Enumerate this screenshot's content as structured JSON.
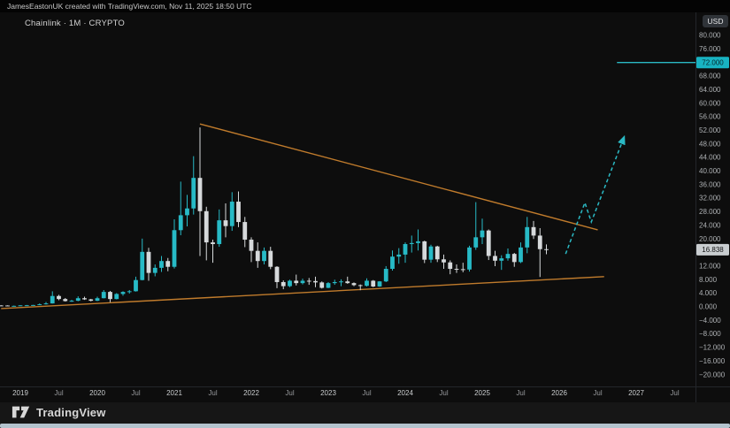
{
  "top_bar": {
    "attribution": "JamesEastonUK created with TradingView.com, Nov 11, 2025 18:50 UTC"
  },
  "chart_header": {
    "symbol_label": "Chainlink · 1M · CRYPTO",
    "currency_button": "USD"
  },
  "footer": {
    "brand": "TradingView",
    "logo_icon": "tradingview-logo"
  },
  "colors": {
    "up_candle": "#27bac6",
    "down_candle": "#d6d9db",
    "trendline": "#c07b2c",
    "projection": "#2ab9c4",
    "price_target_bg": "#18b3c2",
    "last_price_bg": "#c9cdd0",
    "axis_text": "#aeb1b4",
    "year_text": "#c9ccce",
    "month_text": "#97999c",
    "divider": "#23262b",
    "background": "#0d0d0d"
  },
  "price_axis": {
    "ticks": [
      {
        "value": 80,
        "label": "80.000"
      },
      {
        "value": 76,
        "label": "76.000"
      },
      {
        "value": 72,
        "label": "72.000"
      },
      {
        "value": 68,
        "label": "68.000"
      },
      {
        "value": 64,
        "label": "64.000"
      },
      {
        "value": 60,
        "label": "60.000"
      },
      {
        "value": 56,
        "label": "56.000"
      },
      {
        "value": 52,
        "label": "52.000"
      },
      {
        "value": 48,
        "label": "48.000"
      },
      {
        "value": 44,
        "label": "44.000"
      },
      {
        "value": 40,
        "label": "40.000"
      },
      {
        "value": 36,
        "label": "36.000"
      },
      {
        "value": 32,
        "label": "32.000"
      },
      {
        "value": 28,
        "label": "28.000"
      },
      {
        "value": 24,
        "label": "24.000"
      },
      {
        "value": 20,
        "label": "20.000"
      },
      {
        "value": 16,
        "label": "16.000"
      },
      {
        "value": 12,
        "label": "12.000"
      },
      {
        "value": 8,
        "label": "8.000"
      },
      {
        "value": 4,
        "label": "4.000"
      },
      {
        "value": 0,
        "label": "0.000"
      },
      {
        "value": -4,
        "label": "−4.000"
      },
      {
        "value": -8,
        "label": "−8.000"
      },
      {
        "value": -12,
        "label": "−12.000"
      },
      {
        "value": -16,
        "label": "−16.000"
      },
      {
        "value": -20,
        "label": "−20.000"
      }
    ]
  },
  "time_axis": {
    "labels": [
      {
        "text": "2019",
        "month": "2019-01",
        "type": "year"
      },
      {
        "text": "Jul",
        "month": "2019-07",
        "type": "month"
      },
      {
        "text": "2020",
        "month": "2020-01",
        "type": "year"
      },
      {
        "text": "Jul",
        "month": "2020-07",
        "type": "month"
      },
      {
        "text": "2021",
        "month": "2021-01",
        "type": "year"
      },
      {
        "text": "Jul",
        "month": "2021-07",
        "type": "month"
      },
      {
        "text": "2022",
        "month": "2022-01",
        "type": "year"
      },
      {
        "text": "Jul",
        "month": "2022-07",
        "type": "month"
      },
      {
        "text": "2023",
        "month": "2023-01",
        "type": "year"
      },
      {
        "text": "Jul",
        "month": "2023-07",
        "type": "month"
      },
      {
        "text": "2024",
        "month": "2024-01",
        "type": "year"
      },
      {
        "text": "Jul",
        "month": "2024-07",
        "type": "month"
      },
      {
        "text": "2025",
        "month": "2025-01",
        "type": "year"
      },
      {
        "text": "Jul",
        "month": "2025-07",
        "type": "month"
      },
      {
        "text": "2026",
        "month": "2026-01",
        "type": "year"
      },
      {
        "text": "Jul",
        "month": "2026-07",
        "type": "month"
      },
      {
        "text": "2027",
        "month": "2027-01",
        "type": "year"
      },
      {
        "text": "Jul",
        "month": "2027-07",
        "type": "month"
      }
    ]
  },
  "chart_data": {
    "type": "candlestick",
    "title": "Chainlink",
    "interval": "1M",
    "market": "CRYPTO",
    "currency": "USD",
    "ylim": [
      -23,
      87
    ],
    "grid": false,
    "last_price": {
      "label": "16.838",
      "value": 16.838
    },
    "price_target_line": {
      "label": "72.000",
      "value": 72,
      "from_month": "2026-10"
    },
    "candles": [
      {
        "t": "2018-10",
        "o": 0.42,
        "h": 0.48,
        "l": 0.36,
        "c": 0.4
      },
      {
        "t": "2018-11",
        "o": 0.4,
        "h": 0.45,
        "l": 0.25,
        "c": 0.3
      },
      {
        "t": "2018-12",
        "o": 0.3,
        "h": 0.38,
        "l": 0.23,
        "c": 0.3
      },
      {
        "t": "2019-01",
        "o": 0.3,
        "h": 0.49,
        "l": 0.28,
        "c": 0.45
      },
      {
        "t": "2019-02",
        "o": 0.45,
        "h": 0.56,
        "l": 0.41,
        "c": 0.48
      },
      {
        "t": "2019-03",
        "o": 0.48,
        "h": 0.6,
        "l": 0.43,
        "c": 0.55
      },
      {
        "t": "2019-04",
        "o": 0.55,
        "h": 1.0,
        "l": 0.53,
        "c": 0.76
      },
      {
        "t": "2019-05",
        "o": 0.76,
        "h": 1.42,
        "l": 0.7,
        "c": 1.01
      },
      {
        "t": "2019-06",
        "o": 1.01,
        "h": 4.58,
        "l": 0.98,
        "c": 3.2
      },
      {
        "t": "2019-07",
        "o": 3.2,
        "h": 3.55,
        "l": 1.96,
        "c": 2.3
      },
      {
        "t": "2019-08",
        "o": 2.3,
        "h": 2.6,
        "l": 1.55,
        "c": 1.7
      },
      {
        "t": "2019-09",
        "o": 1.7,
        "h": 2.05,
        "l": 1.5,
        "c": 1.8
      },
      {
        "t": "2019-10",
        "o": 1.8,
        "h": 3.1,
        "l": 1.65,
        "c": 2.55
      },
      {
        "t": "2019-11",
        "o": 2.55,
        "h": 3.0,
        "l": 2.05,
        "c": 2.2
      },
      {
        "t": "2019-12",
        "o": 2.2,
        "h": 2.35,
        "l": 1.62,
        "c": 1.8
      },
      {
        "t": "2020-01",
        "o": 1.8,
        "h": 3.0,
        "l": 1.7,
        "c": 2.55
      },
      {
        "t": "2020-02",
        "o": 2.55,
        "h": 4.95,
        "l": 2.5,
        "c": 4.4
      },
      {
        "t": "2020-03",
        "o": 4.4,
        "h": 4.7,
        "l": 1.36,
        "c": 2.3
      },
      {
        "t": "2020-04",
        "o": 2.3,
        "h": 4.05,
        "l": 2.2,
        "c": 3.8
      },
      {
        "t": "2020-05",
        "o": 3.8,
        "h": 4.6,
        "l": 3.3,
        "c": 4.4
      },
      {
        "t": "2020-06",
        "o": 4.4,
        "h": 4.95,
        "l": 3.9,
        "c": 4.6
      },
      {
        "t": "2020-07",
        "o": 4.6,
        "h": 8.9,
        "l": 4.5,
        "c": 7.9
      },
      {
        "t": "2020-08",
        "o": 7.9,
        "h": 20.11,
        "l": 7.8,
        "c": 16.2
      },
      {
        "t": "2020-09",
        "o": 16.2,
        "h": 17.4,
        "l": 7.7,
        "c": 10.0
      },
      {
        "t": "2020-10",
        "o": 10.0,
        "h": 12.5,
        "l": 9.0,
        "c": 11.5
      },
      {
        "t": "2020-11",
        "o": 11.5,
        "h": 15.0,
        "l": 10.3,
        "c": 13.5
      },
      {
        "t": "2020-12",
        "o": 13.5,
        "h": 14.4,
        "l": 10.5,
        "c": 11.8
      },
      {
        "t": "2021-01",
        "o": 11.8,
        "h": 25.8,
        "l": 11.3,
        "c": 22.6
      },
      {
        "t": "2021-02",
        "o": 22.6,
        "h": 36.9,
        "l": 21.1,
        "c": 27.0
      },
      {
        "t": "2021-03",
        "o": 27.0,
        "h": 33.0,
        "l": 23.7,
        "c": 29.0
      },
      {
        "t": "2021-04",
        "o": 29.0,
        "h": 44.4,
        "l": 27.2,
        "c": 38.0
      },
      {
        "t": "2021-05",
        "o": 38.0,
        "h": 52.88,
        "l": 15.0,
        "c": 28.2
      },
      {
        "t": "2021-06",
        "o": 28.2,
        "h": 29.5,
        "l": 13.7,
        "c": 19.0
      },
      {
        "t": "2021-07",
        "o": 19.0,
        "h": 19.8,
        "l": 13.0,
        "c": 18.5
      },
      {
        "t": "2021-08",
        "o": 18.5,
        "h": 28.7,
        "l": 17.7,
        "c": 25.5
      },
      {
        "t": "2021-09",
        "o": 25.5,
        "h": 30.5,
        "l": 20.5,
        "c": 23.8
      },
      {
        "t": "2021-10",
        "o": 23.8,
        "h": 33.8,
        "l": 22.4,
        "c": 31.0
      },
      {
        "t": "2021-11",
        "o": 31.0,
        "h": 34.0,
        "l": 23.5,
        "c": 25.0
      },
      {
        "t": "2021-12",
        "o": 25.0,
        "h": 26.5,
        "l": 17.6,
        "c": 19.8
      },
      {
        "t": "2022-01",
        "o": 19.8,
        "h": 20.5,
        "l": 13.2,
        "c": 16.5
      },
      {
        "t": "2022-02",
        "o": 16.5,
        "h": 19.0,
        "l": 11.5,
        "c": 13.5
      },
      {
        "t": "2022-03",
        "o": 13.5,
        "h": 17.5,
        "l": 12.5,
        "c": 16.5
      },
      {
        "t": "2022-04",
        "o": 16.5,
        "h": 17.7,
        "l": 11.1,
        "c": 11.8
      },
      {
        "t": "2022-05",
        "o": 11.8,
        "h": 12.0,
        "l": 5.5,
        "c": 7.3
      },
      {
        "t": "2022-06",
        "o": 7.3,
        "h": 7.8,
        "l": 5.2,
        "c": 6.1
      },
      {
        "t": "2022-07",
        "o": 6.1,
        "h": 8.0,
        "l": 5.8,
        "c": 7.7
      },
      {
        "t": "2022-08",
        "o": 7.7,
        "h": 9.5,
        "l": 6.3,
        "c": 7.0
      },
      {
        "t": "2022-09",
        "o": 7.0,
        "h": 8.3,
        "l": 6.6,
        "c": 7.7
      },
      {
        "t": "2022-10",
        "o": 7.7,
        "h": 8.5,
        "l": 6.5,
        "c": 7.6
      },
      {
        "t": "2022-11",
        "o": 7.6,
        "h": 8.9,
        "l": 5.8,
        "c": 7.2
      },
      {
        "t": "2022-12",
        "o": 7.2,
        "h": 7.5,
        "l": 5.4,
        "c": 5.6
      },
      {
        "t": "2023-01",
        "o": 5.6,
        "h": 7.3,
        "l": 5.5,
        "c": 7.0
      },
      {
        "t": "2023-02",
        "o": 7.0,
        "h": 8.0,
        "l": 6.5,
        "c": 7.3
      },
      {
        "t": "2023-03",
        "o": 7.3,
        "h": 8.1,
        "l": 6.1,
        "c": 7.5
      },
      {
        "t": "2023-04",
        "o": 7.5,
        "h": 8.9,
        "l": 6.8,
        "c": 7.0
      },
      {
        "t": "2023-05",
        "o": 7.0,
        "h": 7.2,
        "l": 6.1,
        "c": 6.4
      },
      {
        "t": "2023-06",
        "o": 6.4,
        "h": 6.6,
        "l": 4.9,
        "c": 6.2
      },
      {
        "t": "2023-07",
        "o": 6.2,
        "h": 8.4,
        "l": 6.0,
        "c": 7.7
      },
      {
        "t": "2023-08",
        "o": 7.7,
        "h": 7.9,
        "l": 5.8,
        "c": 6.0
      },
      {
        "t": "2023-09",
        "o": 6.0,
        "h": 7.6,
        "l": 5.9,
        "c": 7.5
      },
      {
        "t": "2023-10",
        "o": 7.5,
        "h": 12.0,
        "l": 7.3,
        "c": 11.2
      },
      {
        "t": "2023-11",
        "o": 11.2,
        "h": 16.6,
        "l": 10.7,
        "c": 14.8
      },
      {
        "t": "2023-12",
        "o": 14.8,
        "h": 17.3,
        "l": 12.7,
        "c": 15.4
      },
      {
        "t": "2024-01",
        "o": 15.4,
        "h": 19.0,
        "l": 13.0,
        "c": 18.5
      },
      {
        "t": "2024-02",
        "o": 18.5,
        "h": 21.0,
        "l": 16.0,
        "c": 18.8
      },
      {
        "t": "2024-03",
        "o": 18.8,
        "h": 22.8,
        "l": 16.6,
        "c": 19.3
      },
      {
        "t": "2024-04",
        "o": 19.3,
        "h": 19.5,
        "l": 12.9,
        "c": 13.9
      },
      {
        "t": "2024-05",
        "o": 13.9,
        "h": 18.3,
        "l": 13.0,
        "c": 17.8
      },
      {
        "t": "2024-06",
        "o": 17.8,
        "h": 18.0,
        "l": 13.2,
        "c": 14.0
      },
      {
        "t": "2024-07",
        "o": 14.0,
        "h": 15.4,
        "l": 11.2,
        "c": 13.1
      },
      {
        "t": "2024-08",
        "o": 13.1,
        "h": 13.7,
        "l": 9.6,
        "c": 11.2
      },
      {
        "t": "2024-09",
        "o": 11.2,
        "h": 12.5,
        "l": 10.0,
        "c": 11.1
      },
      {
        "t": "2024-10",
        "o": 11.1,
        "h": 13.0,
        "l": 10.2,
        "c": 11.0
      },
      {
        "t": "2024-11",
        "o": 11.0,
        "h": 18.0,
        "l": 10.4,
        "c": 17.5
      },
      {
        "t": "2024-12",
        "o": 17.5,
        "h": 30.86,
        "l": 16.8,
        "c": 20.5
      },
      {
        "t": "2025-01",
        "o": 20.5,
        "h": 26.0,
        "l": 18.5,
        "c": 22.5
      },
      {
        "t": "2025-02",
        "o": 22.5,
        "h": 22.8,
        "l": 13.8,
        "c": 15.0
      },
      {
        "t": "2025-03",
        "o": 15.0,
        "h": 16.5,
        "l": 12.0,
        "c": 13.6
      },
      {
        "t": "2025-04",
        "o": 13.6,
        "h": 15.2,
        "l": 10.9,
        "c": 14.3
      },
      {
        "t": "2025-05",
        "o": 14.3,
        "h": 17.2,
        "l": 13.6,
        "c": 15.6
      },
      {
        "t": "2025-06",
        "o": 15.6,
        "h": 15.9,
        "l": 11.8,
        "c": 13.2
      },
      {
        "t": "2025-07",
        "o": 13.2,
        "h": 19.0,
        "l": 12.9,
        "c": 17.5
      },
      {
        "t": "2025-08",
        "o": 17.5,
        "h": 26.5,
        "l": 15.8,
        "c": 23.5
      },
      {
        "t": "2025-09",
        "o": 23.5,
        "h": 25.3,
        "l": 20.0,
        "c": 21.0
      },
      {
        "t": "2025-10",
        "o": 21.0,
        "h": 23.2,
        "l": 8.8,
        "c": 17.0
      },
      {
        "t": "2025-11",
        "o": 17.0,
        "h": 18.4,
        "l": 15.5,
        "c": 16.838
      }
    ],
    "trendlines": [
      {
        "name": "descending-resistance",
        "from": {
          "t": "2021-05",
          "value": 53.9
        },
        "to": {
          "t": "2026-07",
          "value": 22.7
        }
      },
      {
        "name": "ascending-support",
        "from": {
          "t": "2018-10",
          "value": -0.5
        },
        "to": {
          "t": "2026-08",
          "value": 8.9
        }
      }
    ],
    "projection": {
      "style": "dashed",
      "points": [
        {
          "t": "2026-02",
          "value": 15.6
        },
        {
          "t": "2026-05",
          "value": 30.7
        },
        {
          "t": "2026-06",
          "value": 25.0
        },
        {
          "t": "2026-11",
          "value": 49.5
        }
      ]
    }
  }
}
